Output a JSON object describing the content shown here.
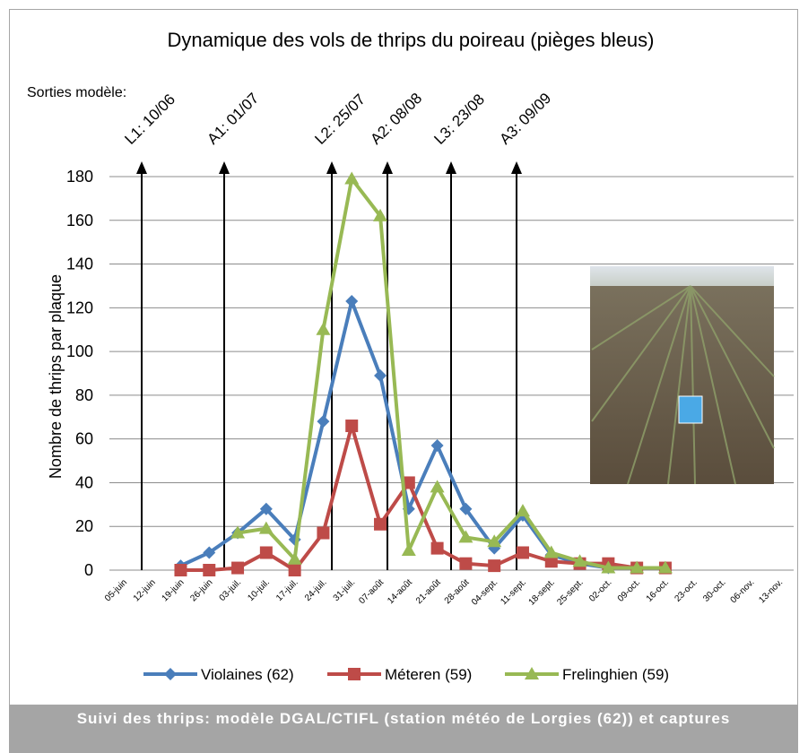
{
  "chart_data": {
    "type": "line",
    "title": "Dynamique des vols de thrips du poireau (pièges bleus)",
    "subtitle": "Sorties modèle:",
    "ylabel": "Nombre de thrips par plaque",
    "caption": "Suivi des thrips: modèle DGAL/CTIFL (station météo de Lorgies (62)) et captures",
    "annotations": [
      "L1: 10/06",
      "A1: 01/07",
      "L2: 25/07",
      "A2: 08/08",
      "L3: 23/08",
      "A3: 09/09"
    ],
    "categories": [
      "05-juin",
      "12-juin",
      "19-juin",
      "26-juin",
      "03-juil.",
      "10-juil.",
      "17-juil.",
      "24-juil.",
      "31-juil.",
      "07-août",
      "14-août",
      "21-août",
      "28-août",
      "04-sept.",
      "11-sept.",
      "18-sept.",
      "25-sept.",
      "02-oct.",
      "09-oct.",
      "16-oct.",
      "23-oct.",
      "30-oct.",
      "06-nov.",
      "13-nov."
    ],
    "series": [
      {
        "name": "Violaines (62)",
        "color": "#4a7ebb",
        "marker": "diamond",
        "values": [
          null,
          null,
          2,
          8,
          17,
          28,
          14,
          68,
          123,
          89,
          28,
          57,
          28,
          10,
          25,
          7,
          3,
          1,
          1,
          1,
          null,
          null,
          null,
          null
        ]
      },
      {
        "name": "Méteren (59)",
        "color": "#be4b48",
        "marker": "square",
        "values": [
          null,
          null,
          0,
          0,
          1,
          8,
          0,
          17,
          66,
          21,
          40,
          10,
          3,
          2,
          8,
          4,
          3,
          3,
          1,
          1,
          null,
          null,
          null,
          null
        ]
      },
      {
        "name": "Frelinghien (59)",
        "color": "#98b954",
        "marker": "triangle",
        "values": [
          null,
          null,
          null,
          null,
          17,
          19,
          5,
          110,
          179,
          162,
          9,
          38,
          15,
          13,
          27,
          8,
          4,
          1,
          1,
          1,
          null,
          null,
          null,
          null
        ]
      }
    ],
    "ylim": [
      0,
      180
    ],
    "yticks": [
      0,
      20,
      40,
      60,
      80,
      100,
      120,
      140,
      160,
      180
    ],
    "grid": true,
    "legend": "bottom"
  }
}
